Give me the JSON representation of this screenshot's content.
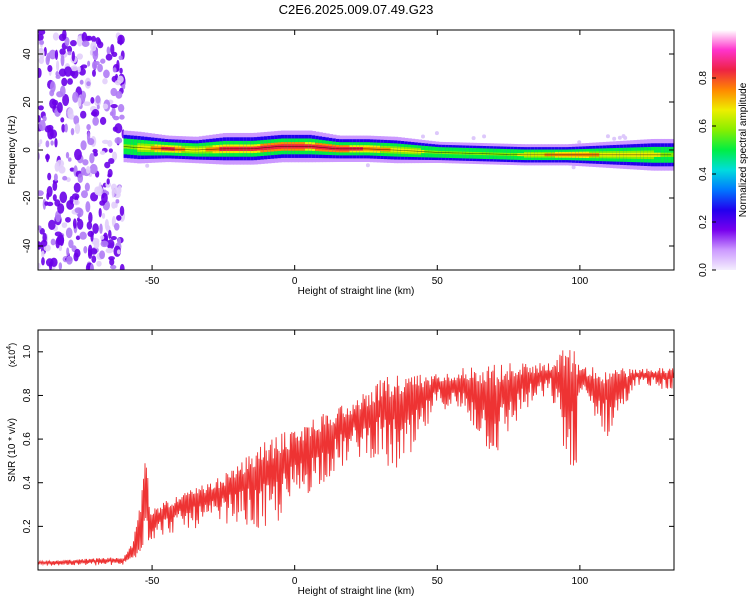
{
  "title": "C2E6.2025.009.07.49.G23",
  "colors": {
    "snr_line": "#ee3333",
    "colormap": [
      "#f4eefe",
      "#cc99ff",
      "#7700ee",
      "#2200ee",
      "#0077ff",
      "#00dddd",
      "#00ee44",
      "#88ee00",
      "#eeee00",
      "#ff8800",
      "#ee2244",
      "#ff33cc",
      "#ffffff"
    ]
  },
  "chart_data": [
    {
      "type": "heatmap",
      "xlabel": "Height of straight line (km)",
      "ylabel": "Frequency (Hz)",
      "xlim": [
        -90,
        133
      ],
      "ylim": [
        -50,
        50
      ],
      "x_ticks": [
        -50,
        0,
        50,
        100
      ],
      "y_ticks": [
        -40,
        -20,
        0,
        20,
        40
      ],
      "colorbar": {
        "label": "Normalized spectral amplitude",
        "range": [
          0,
          1
        ],
        "ticks": [
          "0.0",
          "0.2",
          "0.4",
          "0.6",
          "0.8"
        ]
      },
      "noise_region_x": [
        -90,
        -60
      ],
      "signal_track": {
        "x": [
          -60,
          -55,
          -45,
          -35,
          -25,
          -15,
          -5,
          5,
          15,
          25,
          35,
          50,
          65,
          80,
          95,
          110,
          125,
          133
        ],
        "frequency": [
          1.5,
          1,
          0.5,
          0,
          0.5,
          0.5,
          1.5,
          1.5,
          0.5,
          0.5,
          0,
          -1,
          -1.5,
          -2,
          -2,
          -2,
          -2,
          -2
        ],
        "halfwidth": [
          3,
          3,
          2.5,
          2.5,
          3,
          3,
          3,
          3,
          2.5,
          2.5,
          2.5,
          2,
          2,
          2,
          2,
          2.5,
          3,
          3
        ],
        "amplitude": [
          0.6,
          0.7,
          0.9,
          0.7,
          0.9,
          0.9,
          0.95,
          0.9,
          0.95,
          0.85,
          0.75,
          0.65,
          0.6,
          0.7,
          0.85,
          0.75,
          0.7,
          0.65
        ]
      }
    },
    {
      "type": "line",
      "xlabel": "Height of straight line (km)",
      "ylabel": "SNR (10 * v/v)",
      "y_scale_label": "(x10",
      "y_scale_exp": "4",
      "y_scale_close": ")",
      "xlim": [
        -90,
        133
      ],
      "ylim": [
        0,
        1.1
      ],
      "x_ticks": [
        -50,
        0,
        50,
        100
      ],
      "y_ticks": [
        0.2,
        0.4,
        0.6,
        0.8,
        1.0
      ],
      "y_tick_labels": [
        "0.2",
        "0.4",
        "0.6",
        "0.8",
        "1.0"
      ],
      "series": [
        {
          "x": [
            -90,
            -60,
            -57,
            -54,
            -52,
            -51,
            -50,
            -45,
            -40,
            -30,
            -20,
            -10,
            0,
            10,
            20,
            25,
            30,
            32,
            40,
            50,
            60,
            70,
            80,
            90,
            98,
            100,
            110,
            120,
            133
          ],
          "upper": [
            0.04,
            0.06,
            0.12,
            0.32,
            0.56,
            0.3,
            0.28,
            0.32,
            0.35,
            0.4,
            0.48,
            0.6,
            0.65,
            0.72,
            0.78,
            0.82,
            0.87,
            0.9,
            0.9,
            0.9,
            0.93,
            0.95,
            0.95,
            0.95,
            1.08,
            0.93,
            0.93,
            0.92,
            0.93
          ],
          "lower": [
            0.02,
            0.02,
            0.03,
            0.08,
            0.12,
            0.12,
            0.14,
            0.16,
            0.18,
            0.2,
            0.22,
            0.15,
            0.3,
            0.4,
            0.5,
            0.52,
            0.5,
            0.45,
            0.45,
            0.75,
            0.7,
            0.5,
            0.72,
            0.8,
            0.3,
            0.8,
            0.6,
            0.85,
            0.82
          ]
        }
      ]
    }
  ]
}
